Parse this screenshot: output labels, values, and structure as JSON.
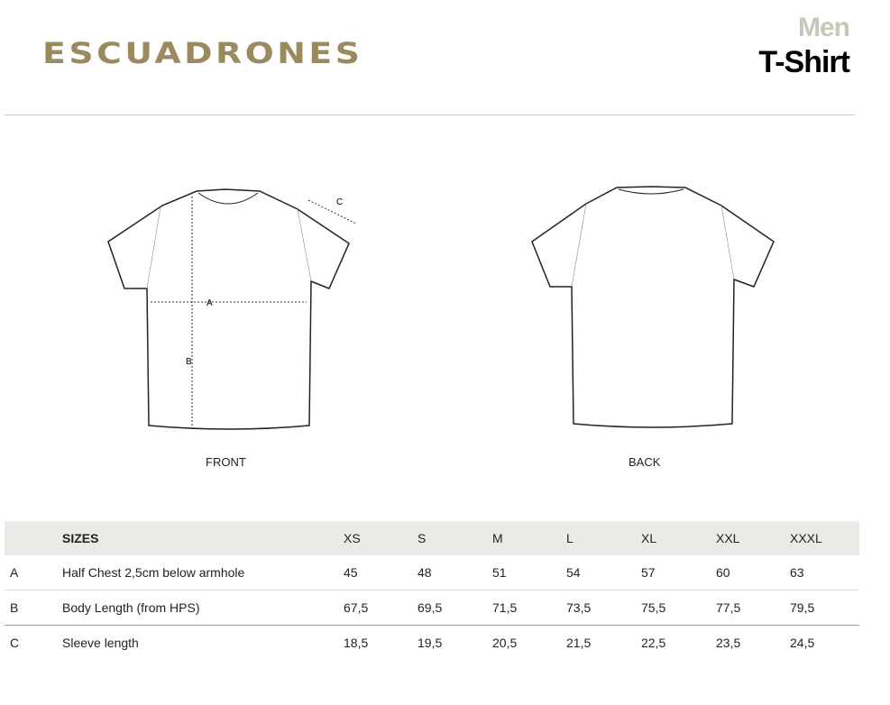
{
  "header": {
    "brand": "ESCUADRONES",
    "category": "Men",
    "product": "T-Shirt"
  },
  "views": {
    "front": "FRONT",
    "back": "BACK"
  },
  "measure_labels": {
    "a": "A",
    "b": "B",
    "c": "C"
  },
  "table": {
    "header_label": "SIZES",
    "sizes": [
      "XS",
      "S",
      "M",
      "L",
      "XL",
      "XXL",
      "XXXL"
    ],
    "rows": [
      {
        "key": "A",
        "label": "Half Chest 2,5cm below armhole",
        "values": [
          "45",
          "48",
          "51",
          "54",
          "57",
          "60",
          "63"
        ]
      },
      {
        "key": "B",
        "label": "Body Length (from HPS)",
        "values": [
          "67,5",
          "69,5",
          "71,5",
          "73,5",
          "75,5",
          "77,5",
          "79,5"
        ]
      },
      {
        "key": "C",
        "label": "Sleeve length",
        "values": [
          "18,5",
          "19,5",
          "20,5",
          "21,5",
          "22,5",
          "23,5",
          "24,5"
        ]
      }
    ]
  },
  "colors": {
    "brand": "#9c8a5f",
    "header_bg": "#eceae6"
  }
}
